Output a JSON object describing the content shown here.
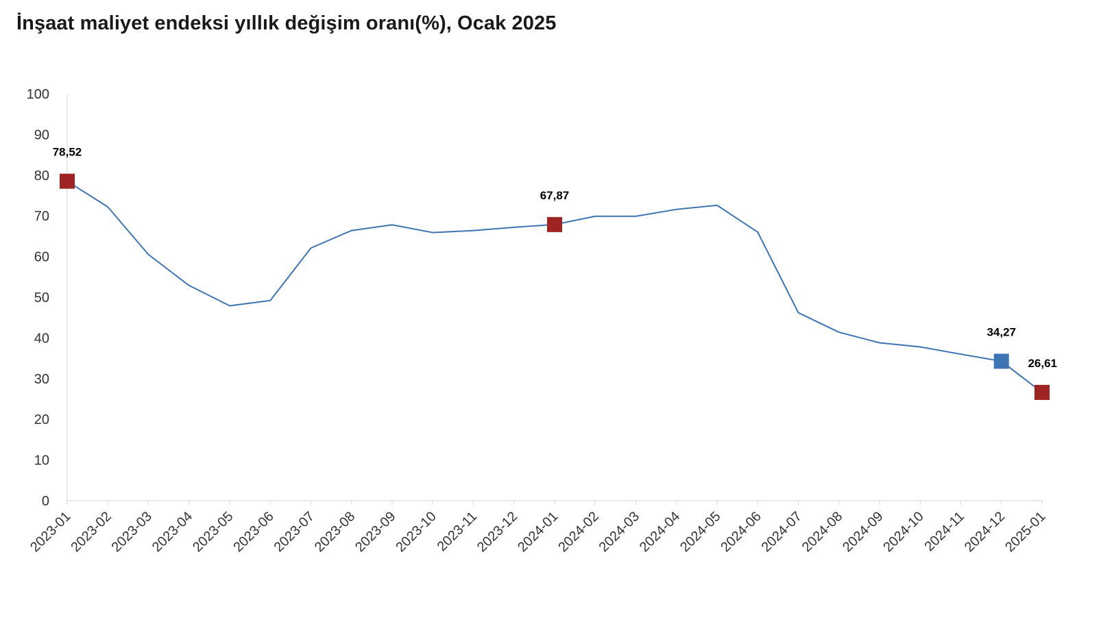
{
  "chart_data": {
    "type": "line",
    "title": "İnşaat maliyet endeksi yıllık değişim oranı(%), Ocak 2025",
    "xlabel": "",
    "ylabel": "",
    "ylim": [
      0,
      100
    ],
    "yticks": [
      "0",
      "10",
      "20",
      "30",
      "40",
      "50",
      "60",
      "70",
      "80",
      "90",
      "100"
    ],
    "grid": false,
    "legend": "none",
    "line_color": "#3d74b3",
    "categories": [
      "2023-01",
      "2023-02",
      "2023-03",
      "2023-04",
      "2023-05",
      "2023-06",
      "2023-07",
      "2023-08",
      "2023-09",
      "2023-10",
      "2023-11",
      "2023-12",
      "2024-01",
      "2024-02",
      "2024-03",
      "2024-04",
      "2024-05",
      "2024-06",
      "2024-07",
      "2024-08",
      "2024-09",
      "2024-10",
      "2024-11",
      "2024-12",
      "2025-01"
    ],
    "series": [
      {
        "values": [
          78.52,
          72.2,
          60.5,
          52.9,
          47.9,
          49.2,
          62.1,
          66.4,
          67.8,
          65.9,
          66.4,
          67.2,
          67.87,
          69.9,
          69.9,
          71.6,
          72.6,
          66.0,
          46.2,
          41.4,
          38.8,
          37.8,
          36.0,
          34.27,
          26.61
        ]
      }
    ],
    "highlighted_points": [
      {
        "category": "2023-01",
        "value": 78.52,
        "label": "78,52",
        "color": "#9e2424"
      },
      {
        "category": "2024-01",
        "value": 67.87,
        "label": "67,87",
        "color": "#9e2424"
      },
      {
        "category": "2024-12",
        "value": 34.27,
        "label": "34,27",
        "color": "#3d74b3"
      },
      {
        "category": "2025-01",
        "value": 26.61,
        "label": "26,61",
        "color": "#9e2424"
      }
    ]
  }
}
